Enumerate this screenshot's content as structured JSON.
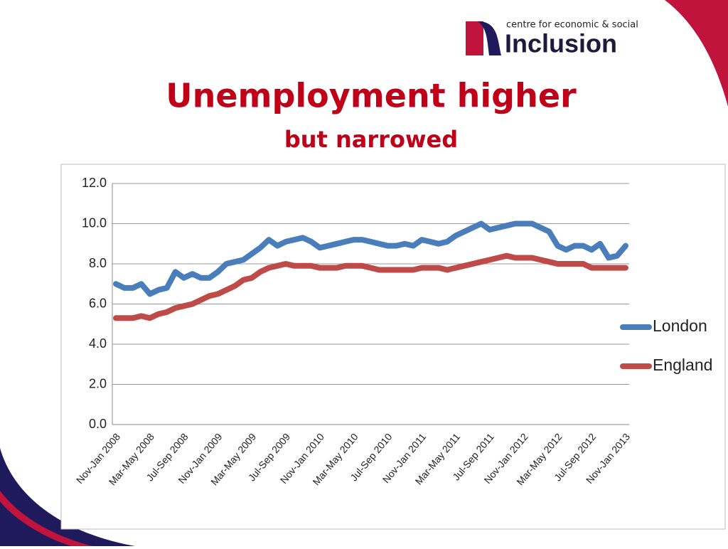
{
  "logo": {
    "tagline": "centre for economic & social",
    "name": "Inclusion"
  },
  "chart_data": {
    "type": "line",
    "title": "Unemployment higher",
    "subtitle": "but narrowed",
    "categories": [
      "Nov-Jan 2008",
      null,
      null,
      null,
      "Mar-May 2008",
      null,
      null,
      null,
      "Jul-Sep 2008",
      null,
      null,
      null,
      "Nov-Jan 2009",
      null,
      null,
      null,
      "Mar-May 2009",
      null,
      null,
      null,
      "Jul-Sep 2009",
      null,
      null,
      null,
      "Nov-Jan 2010",
      null,
      null,
      null,
      "Mar-May 2010",
      null,
      null,
      null,
      "Jul-Sep 2010",
      null,
      null,
      null,
      "Nov-Jan 2011",
      null,
      null,
      null,
      "Mar-May 2011",
      null,
      null,
      null,
      "Jul-Sep 2011",
      null,
      null,
      null,
      "Nov-Jan 2012",
      null,
      null,
      null,
      "Mar-May 2012",
      null,
      null,
      null,
      "Jul-Sep 2012",
      null,
      null,
      null,
      "Nov-Jan 2013"
    ],
    "series": [
      {
        "name": "London",
        "color": "#4a7ebb",
        "values": [
          7.0,
          6.8,
          6.8,
          7.0,
          6.5,
          6.7,
          6.8,
          7.6,
          7.3,
          7.5,
          7.3,
          7.3,
          7.6,
          8.0,
          8.1,
          8.2,
          8.5,
          8.8,
          9.2,
          8.9,
          9.1,
          9.2,
          9.3,
          9.1,
          8.8,
          8.9,
          9.0,
          9.1,
          9.2,
          9.2,
          9.1,
          9.0,
          8.9,
          8.9,
          9.0,
          8.9,
          9.2,
          9.1,
          9.0,
          9.1,
          9.4,
          9.6,
          9.8,
          10.0,
          9.7,
          9.8,
          9.9,
          10.0,
          10.0,
          10.0,
          9.8,
          9.6,
          8.9,
          8.7,
          8.9,
          8.9,
          8.7,
          9.0,
          8.3,
          8.4,
          8.9
        ]
      },
      {
        "name": "England",
        "color": "#be4b48",
        "values": [
          5.3,
          5.3,
          5.3,
          5.4,
          5.3,
          5.5,
          5.6,
          5.8,
          5.9,
          6.0,
          6.2,
          6.4,
          6.5,
          6.7,
          6.9,
          7.2,
          7.3,
          7.6,
          7.8,
          7.9,
          8.0,
          7.9,
          7.9,
          7.9,
          7.8,
          7.8,
          7.8,
          7.9,
          7.9,
          7.9,
          7.8,
          7.7,
          7.7,
          7.7,
          7.7,
          7.7,
          7.8,
          7.8,
          7.8,
          7.7,
          7.8,
          7.9,
          8.0,
          8.1,
          8.2,
          8.3,
          8.4,
          8.3,
          8.3,
          8.3,
          8.2,
          8.1,
          8.0,
          8.0,
          8.0,
          8.0,
          7.8,
          7.8,
          7.8,
          7.8,
          7.8
        ]
      }
    ],
    "ylim": [
      0,
      12
    ],
    "yticks": [
      {
        "value": 0,
        "label": "0.0"
      },
      {
        "value": 2,
        "label": "2.0"
      },
      {
        "value": 4,
        "label": "4.0"
      },
      {
        "value": 6,
        "label": "6.0"
      },
      {
        "value": 8,
        "label": "8.0"
      },
      {
        "value": 10,
        "label": "10.0"
      },
      {
        "value": 12,
        "label": "12.0"
      }
    ],
    "grid": true,
    "legend": "right"
  }
}
